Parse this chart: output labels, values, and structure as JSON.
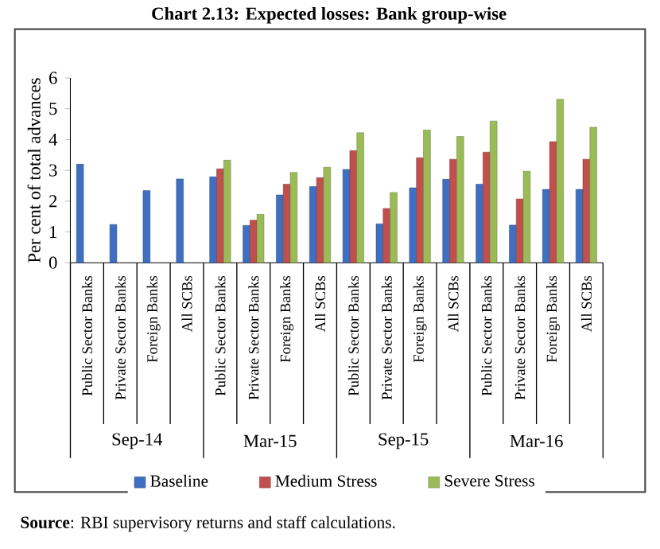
{
  "chart_data": {
    "type": "bar",
    "title": "Chart 2.13: Expected losses: Bank group-wise",
    "ylabel": "Per cent of total advances",
    "categories": [
      "Public Sector Banks",
      "Private Sector Banks",
      "Foreign Banks",
      "All SCBs",
      "Public Sector Banks",
      "Private Sector Banks",
      "Foreign Banks",
      "All SCBs",
      "Public Sector Banks",
      "Private Sector Banks",
      "Foreign Banks",
      "All SCBs",
      "Public Sector Banks",
      "Private Sector Banks",
      "Foreign Banks",
      "All SCBs"
    ],
    "series": [
      {
        "name": "Baseline",
        "color": "#3f6fc0",
        "values": [
          3.2,
          1.24,
          2.34,
          2.72,
          2.79,
          1.21,
          2.2,
          2.47,
          3.03,
          1.26,
          2.43,
          2.71,
          2.55,
          1.22,
          2.38,
          2.38
        ]
      },
      {
        "name": "Medium Stress",
        "color": "#c0504d",
        "values": [
          null,
          null,
          null,
          null,
          3.05,
          1.38,
          2.55,
          2.76,
          3.64,
          1.76,
          3.41,
          3.36,
          3.59,
          2.07,
          3.93,
          3.36
        ]
      },
      {
        "name": "Severe Stress",
        "color": "#9bbb59",
        "values": [
          null,
          null,
          null,
          null,
          3.33,
          1.57,
          2.93,
          3.1,
          4.22,
          2.28,
          4.31,
          4.1,
          4.6,
          2.97,
          5.31,
          4.4
        ]
      }
    ],
    "ylim": [
      0,
      6
    ],
    "yticks": [
      0,
      1,
      2,
      3,
      4,
      5,
      6
    ],
    "legend": "bottom",
    "annotations": [
      "Sep-14",
      "Mar-15",
      "Sep-15",
      "Mar-16",
      "**Source**: RBI supervisory returns and staff calculations."
    ]
  }
}
